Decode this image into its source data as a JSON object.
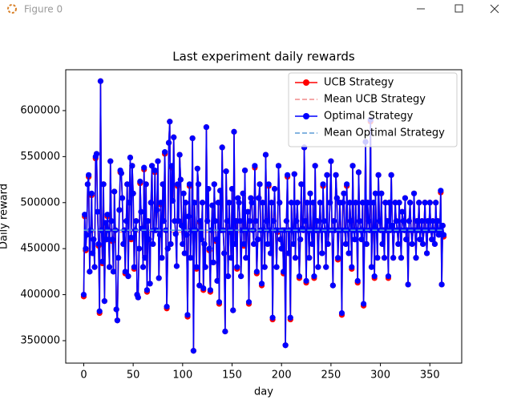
{
  "window": {
    "title": "Figure 0"
  },
  "chart_data": {
    "type": "line",
    "title": "Last experiment daily rewards",
    "xlabel": "day",
    "ylabel": "Daily reward",
    "x": [
      0,
      1,
      2,
      3,
      4,
      5,
      6,
      7,
      8,
      9,
      10,
      11,
      12,
      13,
      14,
      15,
      16,
      17,
      18,
      19,
      20,
      21,
      22,
      23,
      24,
      25,
      26,
      27,
      28,
      29,
      30,
      31,
      32,
      33,
      34,
      35,
      36,
      37,
      38,
      39,
      40,
      41,
      42,
      43,
      44,
      45,
      46,
      47,
      48,
      49,
      50,
      51,
      52,
      53,
      54,
      55,
      56,
      57,
      58,
      59,
      60,
      61,
      62,
      63,
      64,
      65,
      66,
      67,
      68,
      69,
      70,
      71,
      72,
      73,
      74,
      75,
      76,
      77,
      78,
      79,
      80,
      81,
      82,
      83,
      84,
      85,
      86,
      87,
      88,
      89,
      90,
      91,
      92,
      93,
      94,
      95,
      96,
      97,
      98,
      99,
      100,
      101,
      102,
      103,
      104,
      105,
      106,
      107,
      108,
      109,
      110,
      111,
      112,
      113,
      114,
      115,
      116,
      117,
      118,
      119,
      120,
      121,
      122,
      123,
      124,
      125,
      126,
      127,
      128,
      129,
      130,
      131,
      132,
      133,
      134,
      135,
      136,
      137,
      138,
      139,
      140,
      141,
      142,
      143,
      144,
      145,
      146,
      147,
      148,
      149,
      150,
      151,
      152,
      153,
      154,
      155,
      156,
      157,
      158,
      159,
      160,
      161,
      162,
      163,
      164,
      165,
      166,
      167,
      168,
      169,
      170,
      171,
      172,
      173,
      174,
      175,
      176,
      177,
      178,
      179,
      180,
      181,
      182,
      183,
      184,
      185,
      186,
      187,
      188,
      189,
      190,
      191,
      192,
      193,
      194,
      195,
      196,
      197,
      198,
      199,
      200,
      201,
      202,
      203,
      204,
      205,
      206,
      207,
      208,
      209,
      210,
      211,
      212,
      213,
      214,
      215,
      216,
      217,
      218,
      219,
      220,
      221,
      222,
      223,
      224,
      225,
      226,
      227,
      228,
      229,
      230,
      231,
      232,
      233,
      234,
      235,
      236,
      237,
      238,
      239,
      240,
      241,
      242,
      243,
      244,
      245,
      246,
      247,
      248,
      249,
      250,
      251,
      252,
      253,
      254,
      255,
      256,
      257,
      258,
      259,
      260,
      261,
      262,
      263,
      264,
      265,
      266,
      267,
      268,
      269,
      270,
      271,
      272,
      273,
      274,
      275,
      276,
      277,
      278,
      279,
      280,
      281,
      282,
      283,
      284,
      285,
      286,
      287,
      288,
      289,
      290,
      291,
      292,
      293,
      294,
      295,
      296,
      297,
      298,
      299,
      300,
      301,
      302,
      303,
      304,
      305,
      306,
      307,
      308,
      309,
      310,
      311,
      312,
      313,
      314,
      315,
      316,
      317,
      318,
      319,
      320,
      321,
      322,
      323,
      324,
      325,
      326,
      327,
      328,
      329,
      330,
      331,
      332,
      333,
      334,
      335,
      336,
      337,
      338,
      339,
      340,
      341,
      342,
      343,
      344,
      345,
      346,
      347,
      348,
      349,
      350,
      351,
      352,
      353,
      354,
      355,
      356,
      357,
      358,
      359,
      360,
      361,
      362,
      363,
      364
    ],
    "series": [
      {
        "name": "UCB Strategy",
        "color": "red",
        "style": "solid",
        "marker": true,
        "values": [
          398000,
          485000,
          448000,
          465000,
          520000,
          528000,
          425000,
          470000,
          508000,
          445000,
          460000,
          430000,
          548000,
          553000,
          490000,
          453000,
          380000,
          632000,
          470000,
          434000,
          520000,
          393000,
          478000,
          460000,
          485000,
          470000,
          430000,
          545000,
          480000,
          458000,
          425000,
          512000,
          470000,
          384000,
          372000,
          440000,
          492000,
          533000,
          532000,
          505000,
          455000,
          470000,
          423000,
          480000,
          520000,
          420000,
          500000,
          549000,
          460000,
          540000,
          510000,
          428000,
          470000,
          480000,
          400000,
          397000,
          450000,
          521000,
          490000,
          472000,
          430000,
          536000,
          440000,
          520000,
          403000,
          480000,
          460000,
          412000,
          500000,
          540000,
          455000,
          470000,
          533000,
          470000,
          492000,
          545000,
          418000,
          465000,
          498000,
          440000,
          520000,
          480000,
          553000,
          470000,
          385000,
          450000,
          565000,
          588000,
          455000,
          538000,
          502000,
          571000,
          480000,
          466000,
          431000,
          518000,
          480000,
          552000,
          525000,
          475000,
          455000,
          510000,
          445000,
          500000,
          465000,
          376000,
          485000,
          518000,
          440000,
          470000,
          570000,
          339000,
          500000,
          470000,
          428000,
          537000,
          520000,
          410000,
          478000,
          460000,
          500000,
          405000,
          455000,
          430000,
          582000,
          480000,
          515000,
          448000,
          403000,
          470000,
          497000,
          435000,
          520000,
          480000,
          458000,
          415000,
          500000,
          390000,
          513000,
          470000,
          560000,
          470000,
          445000,
          360000,
          534000,
          480000,
          420000,
          500000,
          468000,
          440000,
          515000,
          383000,
          577000,
          455000,
          480000,
          428000,
          505000,
          500000,
          480000,
          420000,
          470000,
          510000,
          453000,
          535000,
          440000,
          470000,
          490000,
          390000,
          480000,
          505000,
          500000,
          470000,
          455000,
          538000,
          480000,
          423000,
          460000,
          505000,
          520000,
          470000,
          410000,
          500000,
          470000,
          430000,
          552000,
          480000,
          455000,
          518000,
          470000,
          445000,
          500000,
          373000,
          480000,
          515000,
          470000,
          430000,
          468000,
          540000,
          500000,
          460000,
          450000,
          470000,
          423000,
          470000,
          345000,
          480000,
          528000,
          445000,
          470000,
          373000,
          500000,
          470000,
          455000,
          531000,
          440000,
          480000,
          500000,
          470000,
          418000,
          460000,
          520000,
          472000,
          470000,
          560000,
          480000,
          413000,
          500000,
          470000,
          440000,
          510000,
          470000,
          455000,
          500000,
          418000,
          540000,
          470000,
          480000,
          430000,
          470000,
          500000,
          470000,
          445000,
          518000,
          480000,
          470000,
          430000,
          530000,
          455000,
          470000,
          500000,
          545000,
          470000,
          410000,
          480000,
          470000,
          530000,
          505000,
          438000,
          470000,
          500000,
          470000,
          378000,
          500000,
          510000,
          470000,
          455000,
          518000,
          470000,
          445000,
          500000,
          480000,
          428000,
          540000,
          470000,
          460000,
          500000,
          470000,
          413000,
          533000,
          480000,
          470000,
          460000,
          500000,
          388000,
          470000,
          566000,
          455000,
          500000,
          480000,
          470000,
          588000,
          430000,
          470000,
          500000,
          418000,
          510000,
          470000,
          440000,
          530000,
          480000,
          470000,
          510000,
          455000,
          470000,
          440000,
          500000,
          470000,
          480000,
          418000,
          500000,
          470000,
          530000,
          475000,
          440000,
          470000,
          500000,
          480000,
          470000,
          455000,
          500000,
          470000,
          440000,
          490000,
          480000,
          470000,
          505000,
          460000,
          470000,
          411000,
          480000,
          500000,
          470000,
          455000,
          470000,
          510000,
          470000,
          440000,
          480000,
          470000,
          500000,
          460000,
          470000,
          480000,
          455000,
          470000,
          500000,
          470000,
          445000,
          480000,
          470000,
          500000,
          470000,
          460000,
          480000,
          470000,
          455000,
          500000,
          470000,
          480000,
          465000,
          470000,
          511000,
          411000,
          475000,
          463000
        ]
      },
      {
        "name": "Mean UCB Strategy",
        "color": "#f08a8a",
        "style": "dashed",
        "marker": false,
        "x": [
          0,
          364
        ],
        "values": [
          468000,
          468000
        ]
      },
      {
        "name": "Optimal Strategy",
        "color": "blue",
        "style": "solid",
        "marker": true,
        "values": [
          400000,
          487000,
          450000,
          465000,
          520000,
          530000,
          425000,
          470000,
          510000,
          445000,
          460000,
          430000,
          550000,
          553000,
          490000,
          455000,
          382000,
          632000,
          470000,
          436000,
          520000,
          393000,
          478000,
          460000,
          487000,
          470000,
          430000,
          545000,
          480000,
          460000,
          425000,
          512000,
          470000,
          384000,
          372000,
          440000,
          492000,
          535000,
          532000,
          505000,
          455000,
          470000,
          425000,
          480000,
          520000,
          420000,
          500000,
          549000,
          462000,
          540000,
          510000,
          430000,
          470000,
          480000,
          400000,
          397000,
          450000,
          523000,
          490000,
          472000,
          430000,
          538000,
          440000,
          520000,
          405000,
          480000,
          460000,
          412000,
          500000,
          540000,
          455000,
          470000,
          535000,
          470000,
          492000,
          545000,
          418000,
          465000,
          500000,
          440000,
          520000,
          480000,
          555000,
          470000,
          387000,
          450000,
          565000,
          588000,
          455000,
          540000,
          502000,
          571000,
          480000,
          466000,
          431000,
          520000,
          480000,
          552000,
          525000,
          475000,
          455000,
          510000,
          445000,
          500000,
          465000,
          378000,
          485000,
          520000,
          440000,
          470000,
          570000,
          339000,
          500000,
          470000,
          430000,
          537000,
          520000,
          410000,
          480000,
          460000,
          500000,
          407000,
          455000,
          430000,
          582000,
          480000,
          515000,
          450000,
          405000,
          470000,
          497000,
          435000,
          520000,
          480000,
          460000,
          415000,
          500000,
          392000,
          513000,
          470000,
          560000,
          470000,
          445000,
          360000,
          534000,
          480000,
          420000,
          500000,
          470000,
          440000,
          515000,
          383000,
          577000,
          455000,
          480000,
          430000,
          505000,
          500000,
          480000,
          420000,
          470000,
          510000,
          455000,
          535000,
          440000,
          470000,
          490000,
          392000,
          480000,
          505000,
          500000,
          470000,
          455000,
          540000,
          480000,
          425000,
          460000,
          505000,
          520000,
          470000,
          412000,
          500000,
          470000,
          430000,
          552000,
          480000,
          455000,
          520000,
          470000,
          445000,
          500000,
          375000,
          480000,
          515000,
          470000,
          430000,
          470000,
          540000,
          500000,
          460000,
          450000,
          470000,
          425000,
          470000,
          345000,
          480000,
          530000,
          445000,
          470000,
          375000,
          500000,
          470000,
          455000,
          531000,
          440000,
          480000,
          500000,
          470000,
          420000,
          460000,
          520000,
          472000,
          470000,
          560000,
          480000,
          415000,
          500000,
          470000,
          440000,
          510000,
          470000,
          455000,
          500000,
          420000,
          540000,
          470000,
          480000,
          430000,
          470000,
          500000,
          470000,
          445000,
          520000,
          480000,
          470000,
          430000,
          530000,
          455000,
          470000,
          500000,
          545000,
          470000,
          410000,
          480000,
          470000,
          530000,
          505000,
          440000,
          470000,
          500000,
          470000,
          380000,
          500000,
          510000,
          470000,
          455000,
          520000,
          470000,
          445000,
          500000,
          480000,
          430000,
          540000,
          470000,
          460000,
          500000,
          470000,
          415000,
          533000,
          480000,
          470000,
          460000,
          500000,
          390000,
          470000,
          566000,
          455000,
          500000,
          480000,
          470000,
          590000,
          430000,
          470000,
          500000,
          420000,
          510000,
          470000,
          440000,
          530000,
          480000,
          470000,
          510000,
          455000,
          470000,
          440000,
          500000,
          470000,
          480000,
          420000,
          500000,
          470000,
          530000,
          475000,
          440000,
          470000,
          500000,
          480000,
          470000,
          455000,
          500000,
          470000,
          440000,
          490000,
          480000,
          470000,
          505000,
          460000,
          470000,
          411000,
          480000,
          500000,
          470000,
          455000,
          470000,
          510000,
          470000,
          440000,
          480000,
          470000,
          500000,
          460000,
          470000,
          480000,
          455000,
          470000,
          500000,
          470000,
          445000,
          480000,
          470000,
          500000,
          470000,
          460000,
          480000,
          470000,
          455000,
          500000,
          470000,
          480000,
          465000,
          470000,
          513000,
          411000,
          475000,
          465000
        ]
      },
      {
        "name": "Mean Optimal Strategy",
        "color": "#5b9bd5",
        "style": "dashed",
        "marker": false,
        "x": [
          0,
          364
        ],
        "values": [
          470000,
          470000
        ]
      }
    ],
    "xlim": [
      -18.2,
      382.2
    ],
    "xticks": [
      0,
      50,
      100,
      150,
      200,
      250,
      300,
      350
    ],
    "ylim": [
      325600,
      644400
    ],
    "yticks": [
      350000,
      400000,
      450000,
      500000,
      550000,
      600000
    ],
    "grid": false,
    "legend": "upper right"
  }
}
